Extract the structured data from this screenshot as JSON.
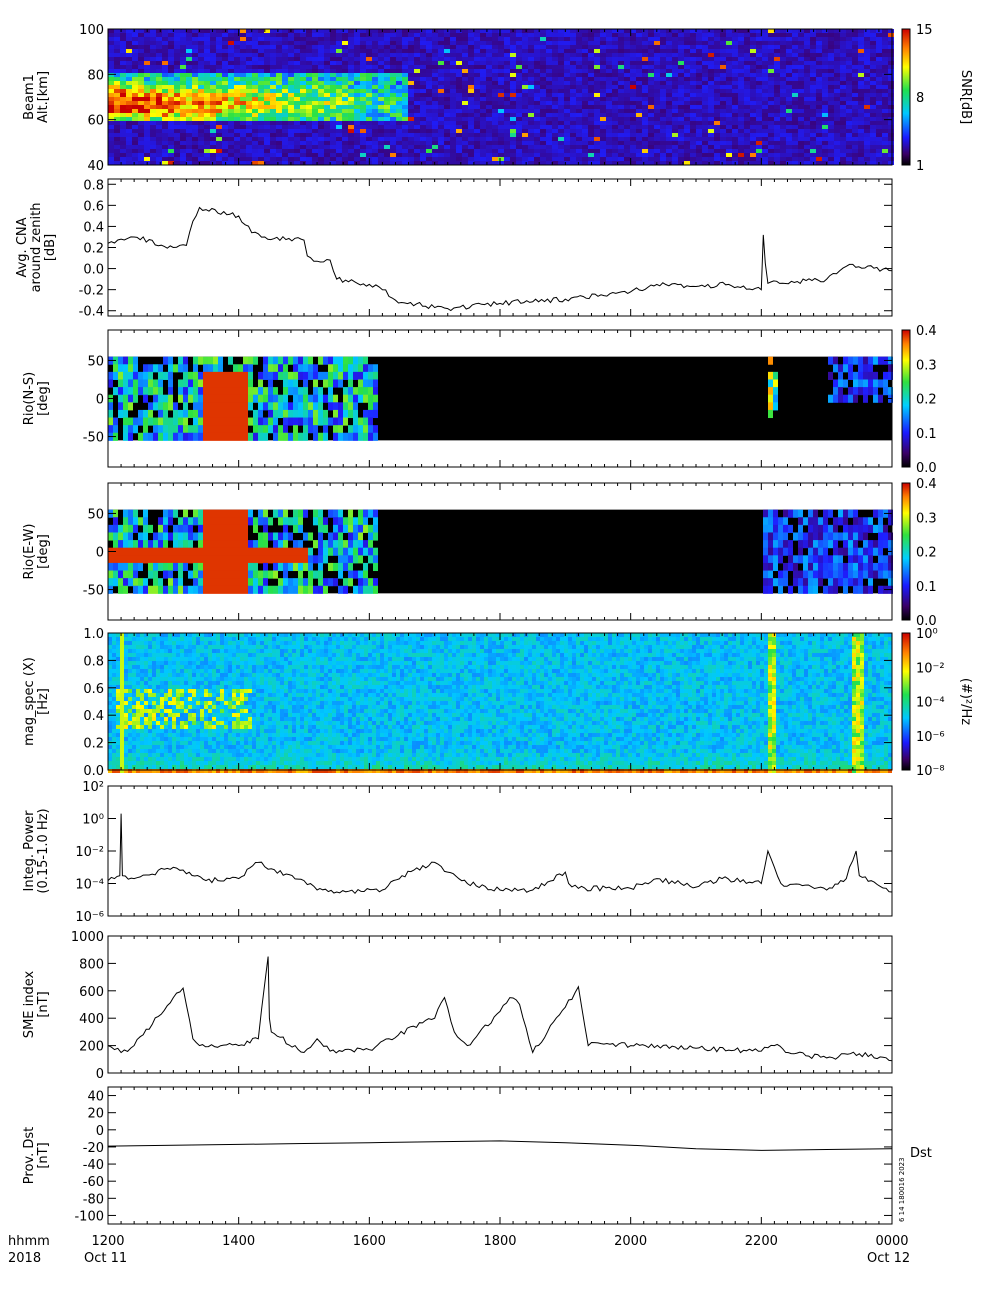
{
  "time_axis": {
    "tick_labels": [
      "1200",
      "1400",
      "1600",
      "1800",
      "2000",
      "2200",
      "0000"
    ],
    "row1_left": "hhmm",
    "row2_left": "2018",
    "start_date": "Oct 11",
    "end_date": "Oct 12"
  },
  "side_labels": {
    "dst_tag": "Dst",
    "stamp": "6 14 180016 2023"
  },
  "colorbars": {
    "snr": {
      "label": "SNR[dB]",
      "ticks": [
        "1",
        "8",
        "15"
      ]
    },
    "rio_ns": {
      "ticks": [
        "0.0",
        "0.1",
        "0.2",
        "0.3",
        "0.4"
      ]
    },
    "rio_ew": {
      "ticks": [
        "0.0",
        "0.1",
        "0.2",
        "0.3",
        "0.4"
      ]
    },
    "mag": {
      "label": "(#)²/Hz",
      "ticks": [
        "10⁰",
        "10⁻²",
        "10⁻⁴",
        "10⁻⁶",
        "10⁻⁸"
      ]
    }
  },
  "chart_data": [
    {
      "type": "heatmap",
      "ylabel_lines": [
        "Beam1",
        "Alt.[km]"
      ],
      "ylim": [
        40,
        100
      ],
      "y_ticks": [
        "40",
        "60",
        "80",
        "100"
      ],
      "colorbar_label": "SNR[dB]",
      "colorbar_range": [
        1,
        15
      ],
      "regions": [
        {
          "t_start": 1200,
          "t_end": 1650,
          "alt_low": 60,
          "alt_high": 82,
          "snr_level": "high"
        },
        {
          "t_start": 1200,
          "t_end": 2400,
          "alt_low": 40,
          "alt_high": 100,
          "snr_level": "background"
        }
      ]
    },
    {
      "type": "line",
      "ylabel_lines": [
        "Avg. CNA",
        "around zenith",
        "[dB]"
      ],
      "ylim": [
        -0.45,
        0.85
      ],
      "y_ticks": [
        "-0.4",
        "-0.2",
        "0.0",
        "0.2",
        "0.4",
        "0.6",
        "0.8"
      ],
      "x": [
        1200,
        1220,
        1240,
        1300,
        1320,
        1330,
        1340,
        1350,
        1400,
        1420,
        1440,
        1500,
        1505,
        1520,
        1540,
        1550,
        1600,
        1620,
        1640,
        1700,
        1720,
        1800,
        1900,
        2000,
        2040,
        2100,
        2150,
        2200,
        2203,
        2206,
        2210,
        2300,
        2320,
        2340,
        2400
      ],
      "y": [
        0.24,
        0.28,
        0.3,
        0.2,
        0.22,
        0.45,
        0.58,
        0.56,
        0.5,
        0.34,
        0.3,
        0.27,
        0.12,
        0.07,
        0.08,
        -0.1,
        -0.15,
        -0.2,
        -0.3,
        -0.37,
        -0.38,
        -0.33,
        -0.29,
        -0.22,
        -0.15,
        -0.17,
        -0.15,
        -0.2,
        0.32,
        0.05,
        -0.14,
        -0.1,
        -0.02,
        0.04,
        -0.02
      ]
    },
    {
      "type": "heatmap",
      "ylabel_lines": [
        "Rio(N-S)",
        "[deg]"
      ],
      "ylim": [
        -90,
        90
      ],
      "y_ticks": [
        "-50",
        "0",
        "50"
      ],
      "colorbar_range": [
        0.0,
        0.4
      ],
      "regions": [
        {
          "t_start": 1200,
          "t_end": 1610,
          "deg_low": -55,
          "deg_high": 55,
          "level": 0.2
        },
        {
          "t_start": 1340,
          "t_end": 1410,
          "deg_low": -55,
          "deg_high": 35,
          "level": 0.4
        },
        {
          "t_start": 2210,
          "t_end": 2220,
          "deg_low": -20,
          "deg_high": 55,
          "level": 0.3
        },
        {
          "t_start": 2300,
          "t_end": 2400,
          "deg_low": 0,
          "deg_high": 55,
          "level": 0.12
        }
      ]
    },
    {
      "type": "heatmap",
      "ylabel_lines": [
        "Rio(E-W)",
        "[deg]"
      ],
      "ylim": [
        -90,
        90
      ],
      "y_ticks": [
        "-50",
        "0",
        "50"
      ],
      "colorbar_range": [
        0.0,
        0.4
      ],
      "regions": [
        {
          "t_start": 1200,
          "t_end": 1610,
          "deg_low": -55,
          "deg_high": 55,
          "level": 0.2
        },
        {
          "t_start": 1200,
          "t_end": 1500,
          "deg_low": -10,
          "deg_high": 0,
          "level": 0.4
        },
        {
          "t_start": 1340,
          "t_end": 1410,
          "deg_low": -55,
          "deg_high": 55,
          "level": 0.4
        },
        {
          "t_start": 2200,
          "t_end": 2400,
          "deg_low": -55,
          "deg_high": 55,
          "level": 0.12
        }
      ]
    },
    {
      "type": "heatmap",
      "ylabel_lines": [
        "mag_spec (X)",
        "[Hz]"
      ],
      "ylim": [
        0.0,
        1.0
      ],
      "y_ticks": [
        "0.0",
        "0.2",
        "0.4",
        "0.6",
        "0.8",
        "1.0"
      ],
      "colorbar_label": "(#)²/Hz",
      "colorbar_range": [
        "1e-8",
        "1e0"
      ],
      "regions": [
        {
          "t_start": 1200,
          "t_end": 2400,
          "freq_low": 0.0,
          "freq_high": 0.15,
          "level": "1e-6"
        },
        {
          "t_start": 1210,
          "t_end": 1420,
          "freq_low": 0.3,
          "freq_high": 0.6,
          "level": "1e-4"
        },
        {
          "t_start": 2210,
          "t_end": 2220,
          "freq_low": 0.0,
          "freq_high": 1.0,
          "level": "1e-4"
        },
        {
          "t_start": 2340,
          "t_end": 2350,
          "freq_low": 0.0,
          "freq_high": 1.0,
          "level": "1e-4"
        }
      ]
    },
    {
      "type": "line",
      "ylabel_lines": [
        "Integ. Power",
        "(0.15-1.0 Hz)"
      ],
      "y_scale": "log",
      "ylim": [
        1e-06,
        100
      ],
      "y_ticks": [
        "10⁻⁶",
        "10⁻⁴",
        "10⁻²",
        "10⁰",
        "10²"
      ],
      "x": [
        1200,
        1210,
        1218,
        1220,
        1222,
        1240,
        1300,
        1320,
        1350,
        1400,
        1430,
        1450,
        1500,
        1520,
        1550,
        1620,
        1650,
        1700,
        1720,
        1750,
        1800,
        1850,
        1900,
        1905,
        1920,
        2000,
        2040,
        2100,
        2140,
        2200,
        2210,
        2220,
        2230,
        2300,
        2330,
        2345,
        2350,
        2400
      ],
      "y": [
        0.00015,
        0.0002,
        0.0003,
        2.0,
        0.0003,
        0.0002,
        0.001,
        0.0004,
        0.00015,
        0.0002,
        0.002,
        0.0008,
        0.00015,
        4e-05,
        3e-05,
        4e-05,
        0.0003,
        0.002,
        0.0005,
        0.0001,
        4e-05,
        4e-05,
        0.0005,
        0.0001,
        5e-05,
        5e-05,
        0.0002,
        6e-05,
        0.0002,
        0.0001,
        0.01,
        0.001,
        0.0001,
        4e-05,
        0.0002,
        0.01,
        0.0003,
        3e-05
      ]
    },
    {
      "type": "line",
      "ylabel_lines": [
        "SME index",
        "[nT]"
      ],
      "ylim": [
        0,
        1000
      ],
      "y_ticks": [
        "0",
        "200",
        "400",
        "600",
        "800",
        "1000"
      ],
      "x": [
        1200,
        1220,
        1240,
        1300,
        1315,
        1330,
        1340,
        1400,
        1430,
        1445,
        1447,
        1450,
        1500,
        1520,
        1540,
        1600,
        1630,
        1700,
        1715,
        1730,
        1750,
        1800,
        1815,
        1830,
        1850,
        1900,
        1920,
        1935,
        1950,
        2000,
        2100,
        2200,
        2220,
        2250,
        2300,
        2350,
        2400
      ],
      "y": [
        200,
        150,
        200,
        550,
        620,
        250,
        200,
        200,
        250,
        850,
        400,
        300,
        150,
        250,
        160,
        170,
        250,
        400,
        550,
        300,
        200,
        450,
        550,
        500,
        150,
        480,
        630,
        200,
        220,
        200,
        180,
        160,
        200,
        140,
        110,
        140,
        90
      ]
    },
    {
      "type": "line",
      "ylabel_lines": [
        "Prov. Dst",
        "[nT]"
      ],
      "ylim": [
        -110,
        50
      ],
      "y_ticks": [
        "-100",
        "-80",
        "-60",
        "-40",
        "-20",
        "0",
        "20",
        "40"
      ],
      "series_tag": "Dst",
      "x": [
        1200,
        1300,
        1400,
        1500,
        1600,
        1700,
        1800,
        1900,
        2000,
        2100,
        2200,
        2300,
        2400
      ],
      "y": [
        -19,
        -18,
        -17,
        -16,
        -15,
        -14,
        -13,
        -15,
        -18,
        -22,
        -24,
        -23,
        -22
      ]
    }
  ]
}
